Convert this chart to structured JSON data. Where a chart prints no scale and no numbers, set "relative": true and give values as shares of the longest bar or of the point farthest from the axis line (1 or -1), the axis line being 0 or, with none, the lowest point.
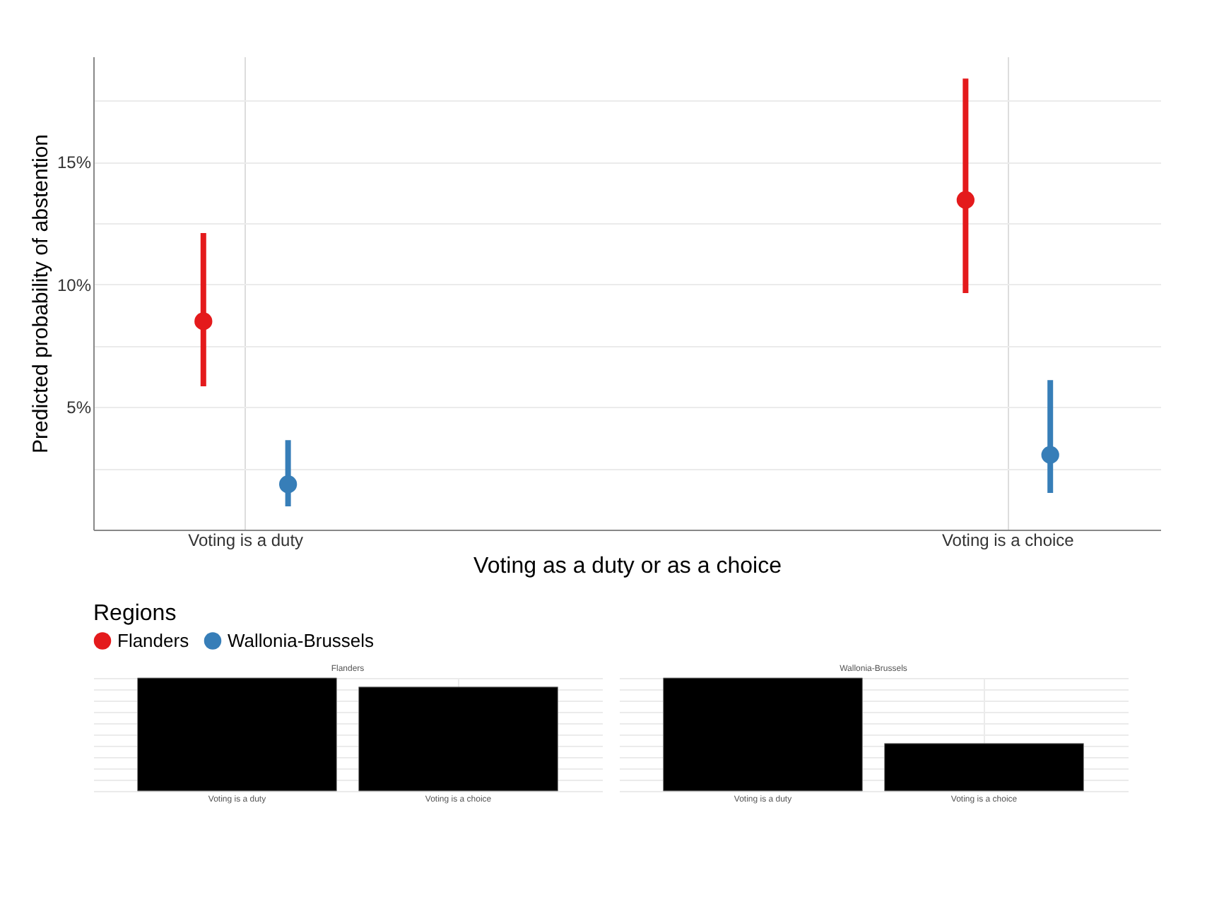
{
  "chart_data": [
    {
      "type": "scatter",
      "xlabel": "Voting as a duty or as a choice",
      "ylabel": "Predicted probability of abstention",
      "legend_title": "Regions",
      "legend": "bottom",
      "grid": true,
      "marker": "circle",
      "categories": [
        "Voting is a duty",
        "Voting is a choice"
      ],
      "ylim": [
        0,
        19.3
      ],
      "yticks": [
        {
          "value": 2.5,
          "label": null
        },
        {
          "value": 5,
          "label": "5%"
        },
        {
          "value": 7.5,
          "label": null
        },
        {
          "value": 10,
          "label": "10%"
        },
        {
          "value": 12.5,
          "label": null
        },
        {
          "value": 15,
          "label": "15%"
        },
        {
          "value": 17.5,
          "label": null
        }
      ],
      "series": [
        {
          "name": "Flanders",
          "color": "#e41a1c",
          "values": [
            8.5,
            13.45
          ],
          "errors": [
            [
              5.85,
              12.1
            ],
            [
              9.65,
              18.4
            ]
          ]
        },
        {
          "name": "Wallonia-Brussels",
          "color": "#377eb8",
          "values": [
            1.85,
            3.05
          ],
          "errors": [
            [
              0.95,
              3.65
            ],
            [
              1.5,
              6.1
            ]
          ]
        }
      ]
    },
    {
      "type": "bar",
      "title": "Flanders",
      "relative": true,
      "grid": true,
      "tick_labels": "x",
      "categories": [
        "Voting is a duty",
        "Voting is a choice"
      ],
      "values": [
        1,
        0.92
      ],
      "color": "#000000"
    },
    {
      "type": "bar",
      "title": "Wallonia-Brussels",
      "relative": true,
      "grid": true,
      "tick_labels": "x",
      "categories": [
        "Voting is a duty",
        "Voting is a choice"
      ],
      "values": [
        1,
        0.42
      ],
      "color": "#000000"
    }
  ]
}
